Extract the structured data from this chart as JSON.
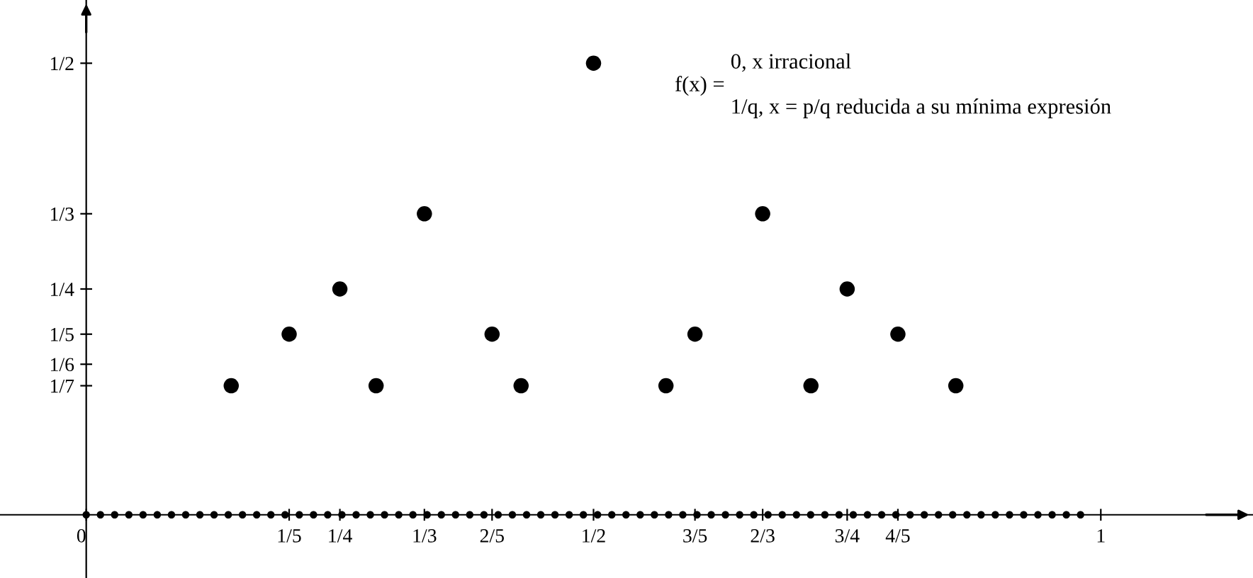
{
  "chart_data": {
    "type": "scatter",
    "annotations": [
      "f(x) =",
      "0, x irracional",
      "1/q, x = p/q reducida a su mínima expresión"
    ],
    "series": [
      {
        "color": "#000000",
        "x": [
          0.1429,
          0.2,
          0.25,
          0.2857,
          0.3333,
          0.4,
          0.4286,
          0.5,
          0.5714,
          0.6,
          0.6667,
          0.7143,
          0.75,
          0.8,
          0.8571
        ],
        "values": [
          0.1429,
          0.2,
          0.25,
          0.1429,
          0.3333,
          0.2,
          0.1429,
          0.5,
          0.1429,
          0.2,
          0.3333,
          0.1429,
          0.25,
          0.2,
          0.1429
        ]
      },
      {
        "color": "#000000",
        "x": [
          0,
          0.014,
          0.028,
          0.042,
          0.056,
          0.07,
          0.084,
          0.098,
          0.112,
          0.126,
          0.14,
          0.154,
          0.168,
          0.182,
          0.196,
          0.21,
          0.224,
          0.238,
          0.252,
          0.266,
          0.28,
          0.294,
          0.308,
          0.322,
          0.336,
          0.35,
          0.364,
          0.378,
          0.392,
          0.406,
          0.42,
          0.434,
          0.448,
          0.462,
          0.476,
          0.49,
          0.504,
          0.518,
          0.532,
          0.546,
          0.56,
          0.574,
          0.588,
          0.602,
          0.616,
          0.63,
          0.644,
          0.658,
          0.672,
          0.686,
          0.7,
          0.714,
          0.728,
          0.742,
          0.756,
          0.77,
          0.784,
          0.798,
          0.812,
          0.826,
          0.84,
          0.854,
          0.868,
          0.882,
          0.896,
          0.91,
          0.924,
          0.938,
          0.952,
          0.966,
          0.98
        ],
        "values": [
          0,
          0,
          0,
          0,
          0,
          0,
          0,
          0,
          0,
          0,
          0,
          0,
          0,
          0,
          0,
          0,
          0,
          0,
          0,
          0,
          0,
          0,
          0,
          0,
          0,
          0,
          0,
          0,
          0,
          0,
          0,
          0,
          0,
          0,
          0,
          0,
          0,
          0,
          0,
          0,
          0,
          0,
          0,
          0,
          0,
          0,
          0,
          0,
          0,
          0,
          0,
          0,
          0,
          0,
          0,
          0,
          0,
          0,
          0,
          0,
          0,
          0,
          0,
          0,
          0,
          0,
          0,
          0,
          0,
          0,
          0
        ]
      }
    ],
    "xlim": [
      -0.085,
      1.15
    ],
    "ylim": [
      -0.07,
      0.57
    ],
    "xticks": [
      0,
      {
        "value": 0.2,
        "label": "1/5"
      },
      {
        "value": 0.25,
        "label": "1/4"
      },
      {
        "value": 0.3333,
        "label": "1/3"
      },
      {
        "value": 0.4,
        "label": "2/5"
      },
      {
        "value": 0.5,
        "label": "1/2"
      },
      {
        "value": 0.6,
        "label": "3/5"
      },
      {
        "value": 0.6667,
        "label": "2/3"
      },
      {
        "value": 0.75,
        "label": "3/4"
      },
      {
        "value": 0.8,
        "label": "4/5"
      },
      1
    ],
    "yticks": [
      {
        "value": 0.5,
        "label": "1/2"
      },
      {
        "value": 0.3333,
        "label": "1/3"
      },
      {
        "value": 0.25,
        "label": "1/4"
      },
      {
        "value": 0.2,
        "label": "1/5"
      },
      {
        "value": 0.1667,
        "label": "1/6"
      },
      {
        "value": 0.1429,
        "label": "1/7"
      }
    ],
    "marker": "circle",
    "grid": false,
    "legend": false
  }
}
